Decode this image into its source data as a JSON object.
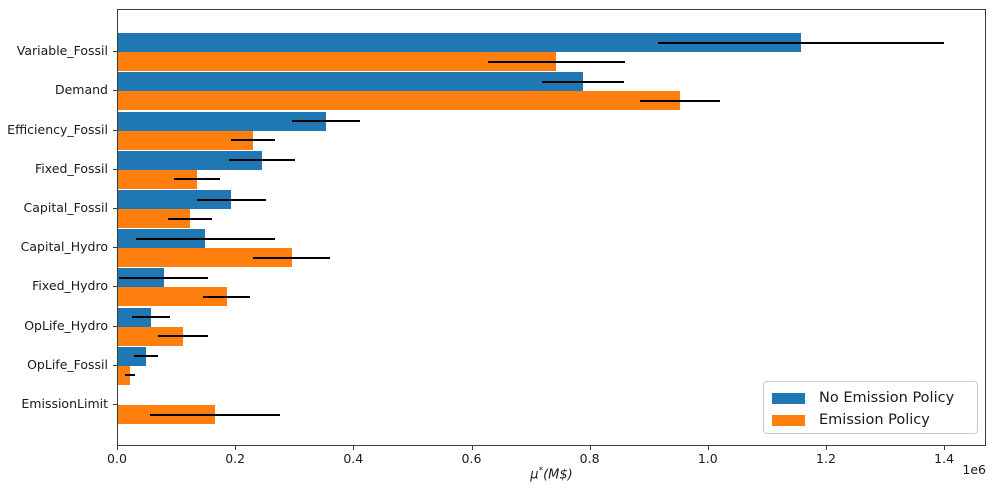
{
  "chart_data": {
    "type": "bar",
    "orientation": "horizontal",
    "title": "",
    "xlabel_mu": "μ",
    "xlabel_sup": "*",
    "xlabel_unit": "(M$)",
    "xlabel_text": "μ*(M$)",
    "x_offset_label": "1e6",
    "xlim": [
      0,
      1467500
    ],
    "grid": false,
    "legend_position": "lower right",
    "xticks": [
      {
        "value": 0,
        "label": "0.0"
      },
      {
        "value": 200000,
        "label": "0.2"
      },
      {
        "value": 400000,
        "label": "0.4"
      },
      {
        "value": 600000,
        "label": "0.6"
      },
      {
        "value": 800000,
        "label": "0.8"
      },
      {
        "value": 1000000,
        "label": "1.0"
      },
      {
        "value": 1200000,
        "label": "1.2"
      },
      {
        "value": 1400000,
        "label": "1.4"
      }
    ],
    "categories": [
      "Variable_Fossil",
      "Demand",
      "Efficiency_Fossil",
      "Fixed_Fossil",
      "Capital_Fossil",
      "Capital_Hydro",
      "Fixed_Hydro",
      "OpLife_Hydro",
      "OpLife_Fossil",
      "EmissionLimit"
    ],
    "series": [
      {
        "name": "No Emission Policy",
        "color": "#1f77b4",
        "values": [
          1156000,
          787000,
          352000,
          243000,
          192000,
          148000,
          77000,
          56000,
          47000,
          0
        ],
        "errors": [
          242000,
          69000,
          58000,
          56000,
          59000,
          118000,
          76000,
          32000,
          20000,
          0
        ]
      },
      {
        "name": "Emission Policy",
        "color": "#ff7f0e",
        "values": [
          742000,
          951000,
          229000,
          133000,
          122000,
          294000,
          184000,
          110000,
          20000,
          164000
        ],
        "errors": [
          116000,
          68000,
          37000,
          39000,
          37000,
          65000,
          40000,
          43000,
          8000,
          110000
        ]
      }
    ]
  }
}
